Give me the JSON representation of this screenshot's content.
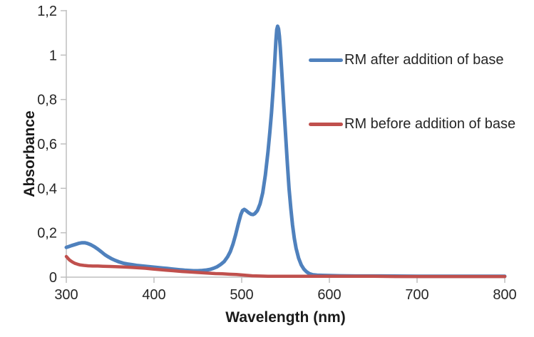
{
  "chart_data": {
    "type": "line",
    "title": "",
    "xlabel": "Wavelength (nm)",
    "ylabel": "Absorbance",
    "xlim": [
      300,
      800
    ],
    "ylim": [
      0,
      1.2
    ],
    "grid": false,
    "background": "#ffffff",
    "axis_color": "#BFBFBF",
    "tick_text_color": "#262626",
    "decimal_separator": ",",
    "xticks": [
      {
        "v": 300,
        "label": "300"
      },
      {
        "v": 400,
        "label": "400"
      },
      {
        "v": 500,
        "label": "500"
      },
      {
        "v": 600,
        "label": "600"
      },
      {
        "v": 700,
        "label": "700"
      },
      {
        "v": 800,
        "label": "800"
      }
    ],
    "yticks": [
      {
        "v": 0.0,
        "label": "0"
      },
      {
        "v": 0.2,
        "label": "0,2"
      },
      {
        "v": 0.4,
        "label": "0,4"
      },
      {
        "v": 0.6,
        "label": "0,6"
      },
      {
        "v": 0.8,
        "label": "0,8"
      },
      {
        "v": 1.0,
        "label": "1"
      },
      {
        "v": 1.2,
        "label": "1,2"
      }
    ],
    "legend": {
      "position": "inside-right",
      "entries": [
        "RM after addition of base",
        "RM before addition of base"
      ]
    },
    "series": [
      {
        "name": "RM after addition of base",
        "color": "#4F81BD",
        "width": 5,
        "points": [
          [
            300,
            0.134
          ],
          [
            303,
            0.138
          ],
          [
            306,
            0.142
          ],
          [
            310,
            0.147
          ],
          [
            314,
            0.152
          ],
          [
            318,
            0.155
          ],
          [
            321,
            0.155
          ],
          [
            324,
            0.152
          ],
          [
            328,
            0.146
          ],
          [
            332,
            0.137
          ],
          [
            336,
            0.126
          ],
          [
            340,
            0.114
          ],
          [
            344,
            0.101
          ],
          [
            348,
            0.091
          ],
          [
            352,
            0.082
          ],
          [
            356,
            0.075
          ],
          [
            360,
            0.069
          ],
          [
            365,
            0.063
          ],
          [
            370,
            0.059
          ],
          [
            375,
            0.056
          ],
          [
            380,
            0.053
          ],
          [
            385,
            0.051
          ],
          [
            390,
            0.049
          ],
          [
            395,
            0.047
          ],
          [
            400,
            0.045
          ],
          [
            405,
            0.043
          ],
          [
            410,
            0.041
          ],
          [
            415,
            0.039
          ],
          [
            420,
            0.037
          ],
          [
            425,
            0.035
          ],
          [
            430,
            0.033
          ],
          [
            435,
            0.031
          ],
          [
            440,
            0.03
          ],
          [
            445,
            0.029
          ],
          [
            450,
            0.029
          ],
          [
            455,
            0.03
          ],
          [
            460,
            0.032
          ],
          [
            464,
            0.035
          ],
          [
            468,
            0.04
          ],
          [
            472,
            0.047
          ],
          [
            476,
            0.057
          ],
          [
            480,
            0.07
          ],
          [
            484,
            0.092
          ],
          [
            487,
            0.115
          ],
          [
            490,
            0.148
          ],
          [
            493,
            0.19
          ],
          [
            496,
            0.238
          ],
          [
            499,
            0.282
          ],
          [
            501,
            0.3
          ],
          [
            503,
            0.305
          ],
          [
            505,
            0.3
          ],
          [
            508,
            0.29
          ],
          [
            511,
            0.283
          ],
          [
            513,
            0.282
          ],
          [
            515,
            0.286
          ],
          [
            518,
            0.3
          ],
          [
            521,
            0.33
          ],
          [
            524,
            0.38
          ],
          [
            527,
            0.46
          ],
          [
            530,
            0.565
          ],
          [
            532,
            0.65
          ],
          [
            534,
            0.74
          ],
          [
            536,
            0.855
          ],
          [
            538,
            0.99
          ],
          [
            539,
            1.065
          ],
          [
            540,
            1.115
          ],
          [
            541,
            1.13
          ],
          [
            542,
            1.118
          ],
          [
            543,
            1.085
          ],
          [
            544,
            1.035
          ],
          [
            546,
            0.905
          ],
          [
            548,
            0.775
          ],
          [
            550,
            0.645
          ],
          [
            552,
            0.515
          ],
          [
            554,
            0.4
          ],
          [
            556,
            0.31
          ],
          [
            558,
            0.235
          ],
          [
            560,
            0.175
          ],
          [
            562,
            0.13
          ],
          [
            565,
            0.085
          ],
          [
            568,
            0.055
          ],
          [
            571,
            0.036
          ],
          [
            574,
            0.024
          ],
          [
            577,
            0.016
          ],
          [
            581,
            0.011
          ],
          [
            586,
            0.009
          ],
          [
            592,
            0.008
          ],
          [
            600,
            0.007
          ],
          [
            612,
            0.006
          ],
          [
            630,
            0.005
          ],
          [
            660,
            0.005
          ],
          [
            700,
            0.004
          ],
          [
            750,
            0.004
          ],
          [
            800,
            0.004
          ]
        ]
      },
      {
        "name": "RM before addition of base",
        "color": "#C0504D",
        "width": 4.5,
        "points": [
          [
            300,
            0.093
          ],
          [
            302,
            0.084
          ],
          [
            304,
            0.076
          ],
          [
            307,
            0.068
          ],
          [
            310,
            0.062
          ],
          [
            313,
            0.058
          ],
          [
            316,
            0.055
          ],
          [
            320,
            0.053
          ],
          [
            325,
            0.051
          ],
          [
            330,
            0.05
          ],
          [
            336,
            0.05
          ],
          [
            342,
            0.049
          ],
          [
            350,
            0.048
          ],
          [
            358,
            0.047
          ],
          [
            366,
            0.046
          ],
          [
            374,
            0.044
          ],
          [
            382,
            0.042
          ],
          [
            390,
            0.04
          ],
          [
            398,
            0.037
          ],
          [
            406,
            0.034
          ],
          [
            414,
            0.031
          ],
          [
            422,
            0.029
          ],
          [
            430,
            0.026
          ],
          [
            438,
            0.024
          ],
          [
            446,
            0.022
          ],
          [
            454,
            0.02
          ],
          [
            462,
            0.018
          ],
          [
            470,
            0.016
          ],
          [
            478,
            0.015
          ],
          [
            486,
            0.013
          ],
          [
            494,
            0.012
          ],
          [
            500,
            0.01
          ],
          [
            506,
            0.008
          ],
          [
            512,
            0.006
          ],
          [
            520,
            0.005
          ],
          [
            530,
            0.004
          ],
          [
            545,
            0.004
          ],
          [
            560,
            0.004
          ],
          [
            580,
            0.004
          ],
          [
            600,
            0.004
          ],
          [
            625,
            0.004
          ],
          [
            650,
            0.004
          ],
          [
            675,
            0.003
          ],
          [
            700,
            0.003
          ],
          [
            730,
            0.003
          ],
          [
            765,
            0.003
          ],
          [
            800,
            0.003
          ]
        ]
      }
    ]
  }
}
